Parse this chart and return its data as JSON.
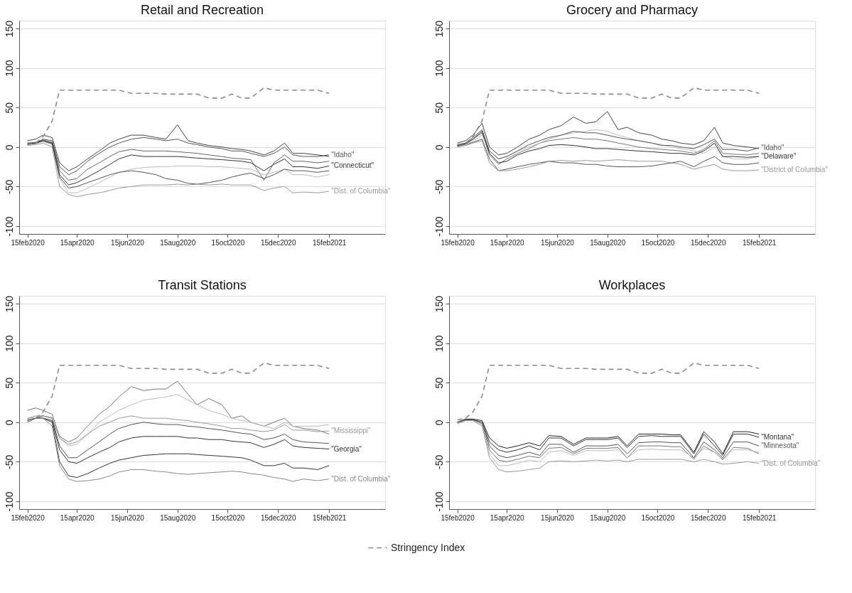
{
  "chart_data": [
    {
      "type": "line",
      "title": "Retail and Recreation",
      "x": [
        "2020-02-15",
        "2020-02-25",
        "2020-03-05",
        "2020-03-16",
        "2020-03-25",
        "2020-04-05",
        "2020-04-15",
        "2020-04-28",
        "2020-05-12",
        "2020-05-25",
        "2020-06-05",
        "2020-06-20",
        "2020-07-05",
        "2020-07-20",
        "2020-08-01",
        "2020-08-15",
        "2020-08-28",
        "2020-09-08",
        "2020-09-22",
        "2020-10-08",
        "2020-10-20",
        "2020-11-01",
        "2020-11-12",
        "2020-11-28",
        "2020-12-10",
        "2020-12-23",
        "2021-01-02",
        "2021-01-15",
        "2021-02-01",
        "2021-02-15"
      ],
      "xlim": [
        "2020-02-05",
        "2021-04-24"
      ],
      "xticks": [
        {
          "value": "2020-02-15",
          "label": "15feb2020"
        },
        {
          "value": "2020-04-15",
          "label": "15apr2020"
        },
        {
          "value": "2020-06-15",
          "label": "15jun2020"
        },
        {
          "value": "2020-08-15",
          "label": "15aug2020"
        },
        {
          "value": "2020-10-15",
          "label": "15oct2020"
        },
        {
          "value": "2020-12-15",
          "label": "15dec2020"
        },
        {
          "value": "2021-02-15",
          "label": "15feb2021"
        }
      ],
      "ylim": [
        -110,
        160
      ],
      "yticks": [
        -100,
        -50,
        0,
        50,
        100,
        150
      ],
      "grid": "y",
      "legend": "bottom",
      "series": [
        {
          "color": "#444444",
          "values": [
            8,
            10,
            15,
            12,
            -20,
            -30,
            -25,
            -15,
            -5,
            5,
            10,
            15,
            15,
            12,
            10,
            28,
            8,
            5,
            2,
            0,
            -2,
            -3,
            -5,
            -10,
            -5,
            5,
            -8,
            -8,
            -10,
            -12
          ]
        },
        {
          "color": "#666666",
          "values": [
            5,
            6,
            9,
            6,
            -30,
            -42,
            -40,
            -28,
            -20,
            -12,
            -6,
            -3,
            -5,
            -5,
            -5,
            -6,
            -7,
            -8,
            -10,
            -12,
            -14,
            -15,
            -16,
            -42,
            -20,
            -10,
            -18,
            -18,
            -20,
            -18
          ]
        },
        {
          "color": "#bbbbbb",
          "values": [
            4,
            4,
            7,
            3,
            -40,
            -58,
            -58,
            -52,
            -45,
            -38,
            -32,
            -28,
            -26,
            -25,
            -25,
            -24,
            -24,
            -24,
            -25,
            -25,
            -26,
            -27,
            -28,
            -35,
            -32,
            -28,
            -35,
            -35,
            -38,
            -35
          ]
        },
        {
          "color": "#555555",
          "values": [
            4,
            5,
            8,
            4,
            -38,
            -52,
            -50,
            -45,
            -40,
            -35,
            -32,
            -30,
            -32,
            -35,
            -40,
            -42,
            -46,
            -47,
            -45,
            -42,
            -38,
            -35,
            -33,
            -40,
            -35,
            -28,
            -30,
            -30,
            -32,
            -30
          ]
        },
        {
          "name": "\"Idaho\"",
          "color": "#555555",
          "values": [
            5,
            5,
            10,
            8,
            -25,
            -35,
            -30,
            -18,
            -8,
            0,
            5,
            10,
            12,
            10,
            8,
            10,
            5,
            3,
            0,
            -2,
            -5,
            -5,
            -8,
            -12,
            -8,
            0,
            -10,
            -12,
            -12,
            -10
          ]
        },
        {
          "name": "\"Connecticut\"",
          "color": "#333333",
          "values": [
            3,
            5,
            8,
            5,
            -35,
            -48,
            -45,
            -38,
            -30,
            -22,
            -15,
            -10,
            -12,
            -12,
            -12,
            -12,
            -13,
            -14,
            -15,
            -16,
            -17,
            -18,
            -20,
            -30,
            -22,
            -15,
            -25,
            -25,
            -27,
            -24
          ]
        },
        {
          "name": "\"Dist. of Columbia\"",
          "color": "#999999",
          "values": [
            2,
            3,
            5,
            0,
            -50,
            -60,
            -63,
            -60,
            -58,
            -55,
            -52,
            -50,
            -48,
            -48,
            -48,
            -47,
            -48,
            -47,
            -48,
            -47,
            -48,
            -48,
            -48,
            -55,
            -52,
            -50,
            -58,
            -57,
            -58,
            -56
          ]
        },
        {
          "name": "Stringency Index",
          "color": "#8c8c8c",
          "line_style": "dashed",
          "values": [
            3,
            5,
            13,
            33,
            72,
            72,
            72,
            72,
            72,
            72,
            72,
            68,
            68,
            68,
            67,
            67,
            67,
            67,
            62,
            62,
            67,
            62,
            62,
            75,
            72,
            72,
            72,
            72,
            72,
            68
          ]
        }
      ]
    },
    {
      "type": "line",
      "title": "Grocery and Pharmacy",
      "x": [
        "2020-02-15",
        "2020-02-25",
        "2020-03-05",
        "2020-03-16",
        "2020-03-25",
        "2020-04-05",
        "2020-04-15",
        "2020-04-28",
        "2020-05-12",
        "2020-05-25",
        "2020-06-05",
        "2020-06-20",
        "2020-07-05",
        "2020-07-20",
        "2020-08-01",
        "2020-08-15",
        "2020-08-28",
        "2020-09-08",
        "2020-09-22",
        "2020-10-08",
        "2020-10-20",
        "2020-11-01",
        "2020-11-12",
        "2020-11-28",
        "2020-12-10",
        "2020-12-23",
        "2021-01-02",
        "2021-01-15",
        "2021-02-01",
        "2021-02-15"
      ],
      "xlim": [
        "2020-02-05",
        "2021-04-24"
      ],
      "xticks": [
        {
          "value": "2020-02-15",
          "label": "15feb2020"
        },
        {
          "value": "2020-04-15",
          "label": "15apr2020"
        },
        {
          "value": "2020-06-15",
          "label": "15jun2020"
        },
        {
          "value": "2020-08-15",
          "label": "15aug2020"
        },
        {
          "value": "2020-10-15",
          "label": "15oct2020"
        },
        {
          "value": "2020-12-15",
          "label": "15dec2020"
        },
        {
          "value": "2021-02-15",
          "label": "15feb2021"
        }
      ],
      "ylim": [
        -110,
        160
      ],
      "yticks": [
        -100,
        -50,
        0,
        50,
        100,
        150
      ],
      "grid": "y",
      "legend": "bottom",
      "series": [
        {
          "color": "#444444",
          "values": [
            5,
            8,
            15,
            30,
            0,
            -10,
            -8,
            0,
            10,
            15,
            22,
            27,
            38,
            30,
            32,
            45,
            22,
            25,
            18,
            15,
            10,
            8,
            5,
            3,
            8,
            25,
            5,
            2,
            0,
            -2
          ]
        },
        {
          "color": "#777777",
          "values": [
            3,
            5,
            10,
            18,
            -10,
            -22,
            -15,
            -8,
            -2,
            5,
            8,
            10,
            12,
            10,
            10,
            8,
            5,
            3,
            0,
            -2,
            -3,
            -4,
            -5,
            -8,
            -3,
            8,
            -8,
            -9,
            -10,
            -8
          ]
        },
        {
          "color": "#555555",
          "values": [
            1,
            3,
            6,
            10,
            -15,
            -30,
            -28,
            -25,
            -22,
            -20,
            -18,
            -20,
            -20,
            -22,
            -22,
            -24,
            -25,
            -25,
            -25,
            -24,
            -22,
            -20,
            -18,
            -25,
            -18,
            -12,
            -20,
            -22,
            -22,
            -20
          ]
        },
        {
          "color": "#bbbbbb",
          "values": [
            0,
            3,
            8,
            15,
            -5,
            -15,
            -12,
            -5,
            0,
            5,
            10,
            15,
            18,
            20,
            22,
            20,
            15,
            12,
            8,
            5,
            3,
            0,
            -2,
            -5,
            -8,
            0,
            -12,
            -15,
            -15,
            -12
          ]
        },
        {
          "name": "\"Idaho\"",
          "color": "#555555",
          "values": [
            2,
            5,
            12,
            22,
            -5,
            -15,
            -12,
            -5,
            3,
            8,
            12,
            15,
            20,
            18,
            18,
            15,
            12,
            10,
            8,
            5,
            2,
            2,
            0,
            -2,
            3,
            10,
            -3,
            -3,
            -5,
            -1
          ]
        },
        {
          "name": "\"Delaware\"",
          "color": "#333333",
          "values": [
            2,
            4,
            10,
            20,
            -8,
            -20,
            -18,
            -10,
            -5,
            -2,
            2,
            3,
            2,
            0,
            -2,
            -2,
            -3,
            -4,
            -5,
            -6,
            -7,
            -8,
            -8,
            -10,
            -5,
            5,
            -12,
            -12,
            -13,
            -12
          ]
        },
        {
          "name": "\"District of Columbia\"",
          "color": "#999999",
          "values": [
            0,
            2,
            5,
            8,
            -20,
            -30,
            -30,
            -28,
            -25,
            -22,
            -18,
            -17,
            -18,
            -17,
            -18,
            -17,
            -16,
            -17,
            -18,
            -18,
            -18,
            -20,
            -22,
            -28,
            -25,
            -22,
            -28,
            -30,
            -30,
            -29
          ]
        },
        {
          "name": "Stringency Index",
          "color": "#8c8c8c",
          "line_style": "dashed",
          "values": [
            3,
            5,
            13,
            33,
            72,
            72,
            72,
            72,
            72,
            72,
            72,
            68,
            68,
            68,
            67,
            67,
            67,
            67,
            62,
            62,
            67,
            62,
            62,
            75,
            72,
            72,
            72,
            72,
            72,
            68
          ]
        }
      ]
    },
    {
      "type": "line",
      "title": "Transit Stations",
      "x": [
        "2020-02-15",
        "2020-02-25",
        "2020-03-05",
        "2020-03-16",
        "2020-03-25",
        "2020-04-05",
        "2020-04-15",
        "2020-04-28",
        "2020-05-12",
        "2020-05-25",
        "2020-06-05",
        "2020-06-20",
        "2020-07-05",
        "2020-07-20",
        "2020-08-01",
        "2020-08-15",
        "2020-08-28",
        "2020-09-08",
        "2020-09-22",
        "2020-10-08",
        "2020-10-20",
        "2020-11-01",
        "2020-11-12",
        "2020-11-28",
        "2020-12-10",
        "2020-12-23",
        "2021-01-02",
        "2021-01-15",
        "2021-02-01",
        "2021-02-15"
      ],
      "xlim": [
        "2020-02-05",
        "2021-04-24"
      ],
      "xticks": [
        {
          "value": "2020-02-15",
          "label": "15feb2020"
        },
        {
          "value": "2020-04-15",
          "label": "15apr2020"
        },
        {
          "value": "2020-06-15",
          "label": "15jun2020"
        },
        {
          "value": "2020-08-15",
          "label": "15aug2020"
        },
        {
          "value": "2020-10-15",
          "label": "15oct2020"
        },
        {
          "value": "2020-12-15",
          "label": "15dec2020"
        },
        {
          "value": "2021-02-15",
          "label": "15feb2021"
        }
      ],
      "ylim": [
        -110,
        160
      ],
      "yticks": [
        -100,
        -50,
        0,
        50,
        100,
        150
      ],
      "grid": "y",
      "legend": "bottom",
      "series": [
        {
          "color": "#777777",
          "values": [
            15,
            18,
            15,
            10,
            -18,
            -25,
            -20,
            -5,
            10,
            20,
            32,
            45,
            40,
            42,
            42,
            52,
            35,
            22,
            30,
            22,
            5,
            8,
            0,
            -5,
            0,
            5,
            -5,
            -8,
            -10,
            -15
          ]
        },
        {
          "color": "#bbbbbb",
          "values": [
            5,
            6,
            8,
            6,
            -20,
            -30,
            -28,
            -15,
            0,
            8,
            15,
            22,
            28,
            30,
            32,
            35,
            28,
            22,
            15,
            10,
            5,
            2,
            0,
            -5,
            -8,
            0,
            -5,
            -5,
            -5,
            -3
          ]
        },
        {
          "color": "#555555",
          "values": [
            0,
            5,
            8,
            5,
            -30,
            -45,
            -45,
            -35,
            -25,
            -15,
            -8,
            -3,
            0,
            -2,
            -3,
            -3,
            -5,
            -6,
            -8,
            -10,
            -12,
            -14,
            -15,
            -22,
            -20,
            -15,
            -22,
            -25,
            -26,
            -27
          ]
        },
        {
          "color": "#333333",
          "values": [
            2,
            5,
            5,
            0,
            -50,
            -68,
            -70,
            -65,
            -58,
            -52,
            -48,
            -45,
            -42,
            -41,
            -40,
            -40,
            -40,
            -41,
            -42,
            -43,
            -44,
            -45,
            -48,
            -55,
            -55,
            -52,
            -58,
            -58,
            -60,
            -55
          ]
        },
        {
          "name": "\"Mississippi\"",
          "color": "#999999",
          "values": [
            5,
            8,
            8,
            5,
            -20,
            -28,
            -25,
            -15,
            -5,
            0,
            5,
            8,
            5,
            5,
            5,
            3,
            2,
            0,
            -2,
            -5,
            -8,
            -8,
            -10,
            -12,
            -10,
            -3,
            -10,
            -10,
            -12,
            -11
          ]
        },
        {
          "name": "\"Georgia\"",
          "color": "#333333",
          "values": [
            3,
            5,
            5,
            2,
            -35,
            -50,
            -52,
            -45,
            -38,
            -32,
            -25,
            -20,
            -18,
            -18,
            -18,
            -18,
            -20,
            -20,
            -22,
            -22,
            -24,
            -25,
            -26,
            -32,
            -28,
            -22,
            -30,
            -32,
            -33,
            -34
          ]
        },
        {
          "name": "\"Dist. of Columbia\"",
          "color": "#888888",
          "values": [
            2,
            5,
            5,
            -5,
            -55,
            -72,
            -75,
            -74,
            -72,
            -68,
            -63,
            -60,
            -60,
            -62,
            -63,
            -65,
            -66,
            -65,
            -64,
            -63,
            -62,
            -63,
            -65,
            -67,
            -70,
            -72,
            -75,
            -72,
            -74,
            -72
          ]
        },
        {
          "name": "Stringency Index",
          "color": "#8c8c8c",
          "line_style": "dashed",
          "values": [
            3,
            5,
            13,
            33,
            72,
            72,
            72,
            72,
            72,
            72,
            72,
            68,
            68,
            68,
            67,
            67,
            67,
            67,
            62,
            62,
            67,
            62,
            62,
            75,
            72,
            72,
            72,
            72,
            72,
            68
          ]
        }
      ]
    },
    {
      "type": "line",
      "title": "Workplaces",
      "x": [
        "2020-02-15",
        "2020-02-25",
        "2020-03-05",
        "2020-03-16",
        "2020-03-25",
        "2020-04-05",
        "2020-04-15",
        "2020-04-28",
        "2020-05-12",
        "2020-05-25",
        "2020-06-05",
        "2020-06-20",
        "2020-07-05",
        "2020-07-20",
        "2020-08-01",
        "2020-08-15",
        "2020-08-28",
        "2020-09-08",
        "2020-09-22",
        "2020-10-08",
        "2020-10-20",
        "2020-11-01",
        "2020-11-12",
        "2020-11-28",
        "2020-12-10",
        "2020-12-23",
        "2021-01-02",
        "2021-01-15",
        "2021-02-01",
        "2021-02-15"
      ],
      "xlim": [
        "2020-02-05",
        "2021-04-24"
      ],
      "xticks": [
        {
          "value": "2020-02-15",
          "label": "15feb2020"
        },
        {
          "value": "2020-04-15",
          "label": "15apr2020"
        },
        {
          "value": "2020-06-15",
          "label": "15jun2020"
        },
        {
          "value": "2020-08-15",
          "label": "15aug2020"
        },
        {
          "value": "2020-10-15",
          "label": "15oct2020"
        },
        {
          "value": "2020-12-15",
          "label": "15dec2020"
        },
        {
          "value": "2021-02-15",
          "label": "15feb2021"
        }
      ],
      "ylim": [
        -110,
        160
      ],
      "yticks": [
        -100,
        -50,
        0,
        50,
        100,
        150
      ],
      "grid": "y",
      "legend": "bottom",
      "series": [
        {
          "color": "#222222",
          "values": [
            0,
            4,
            4,
            2,
            -20,
            -30,
            -33,
            -30,
            -26,
            -30,
            -17,
            -18,
            -28,
            -20,
            -20,
            -20,
            -18,
            -30,
            -15,
            -15,
            -15,
            -16,
            -16,
            -38,
            -12,
            -25,
            -40,
            -12,
            -12,
            -15
          ]
        },
        {
          "color": "#777777",
          "values": [
            0,
            3,
            3,
            -2,
            -35,
            -48,
            -50,
            -47,
            -43,
            -45,
            -33,
            -32,
            -40,
            -33,
            -33,
            -33,
            -32,
            -45,
            -30,
            -30,
            -30,
            -31,
            -31,
            -47,
            -30,
            -38,
            -47,
            -32,
            -33,
            -40
          ]
        },
        {
          "color": "#bbbbbb",
          "values": [
            -1,
            2,
            2,
            -3,
            -40,
            -55,
            -55,
            -52,
            -48,
            -50,
            -38,
            -36,
            -42,
            -36,
            -36,
            -36,
            -35,
            -45,
            -35,
            -34,
            -35,
            -35,
            -35,
            -45,
            -33,
            -38,
            -48,
            -35,
            -35,
            -38
          ]
        },
        {
          "name": "\"Montana\"",
          "color": "#333333",
          "values": [
            0,
            3,
            3,
            0,
            -25,
            -35,
            -38,
            -35,
            -30,
            -35,
            -20,
            -20,
            -30,
            -22,
            -22,
            -22,
            -20,
            -32,
            -18,
            -17,
            -18,
            -18,
            -18,
            -40,
            -15,
            -30,
            -42,
            -15,
            -15,
            -19
          ]
        },
        {
          "name": "\"Minnesota\"",
          "color": "#555555",
          "values": [
            0,
            3,
            3,
            0,
            -30,
            -42,
            -45,
            -42,
            -38,
            -42,
            -28,
            -28,
            -38,
            -30,
            -30,
            -30,
            -28,
            -40,
            -26,
            -25,
            -25,
            -26,
            -26,
            -45,
            -25,
            -35,
            -45,
            -25,
            -25,
            -30
          ]
        },
        {
          "name": "\"Dist. of Columbia\"",
          "color": "#999999",
          "values": [
            -2,
            2,
            2,
            -5,
            -45,
            -60,
            -63,
            -62,
            -60,
            -58,
            -50,
            -49,
            -50,
            -49,
            -48,
            -49,
            -48,
            -50,
            -47,
            -47,
            -47,
            -47,
            -47,
            -50,
            -47,
            -50,
            -53,
            -52,
            -50,
            -52
          ]
        },
        {
          "name": "Stringency Index",
          "color": "#8c8c8c",
          "line_style": "dashed",
          "values": [
            3,
            5,
            13,
            33,
            72,
            72,
            72,
            72,
            72,
            72,
            72,
            68,
            68,
            68,
            67,
            67,
            67,
            67,
            62,
            62,
            67,
            62,
            62,
            75,
            72,
            72,
            72,
            72,
            72,
            68
          ]
        }
      ]
    }
  ]
}
